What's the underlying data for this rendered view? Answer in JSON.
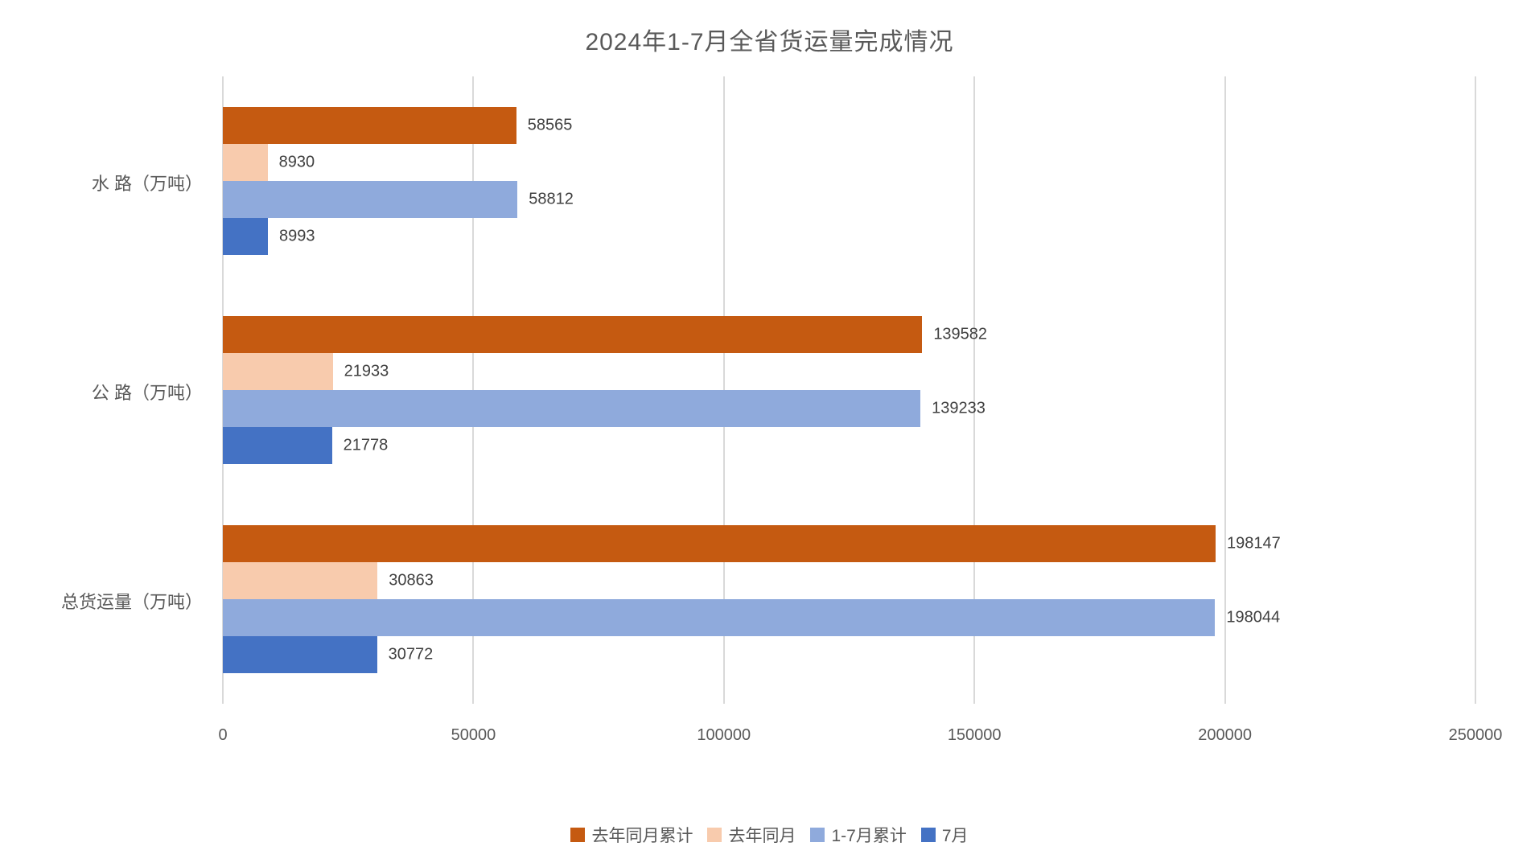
{
  "chart_data": {
    "type": "bar",
    "orientation": "horizontal",
    "title": "2024年1-7月全省货运量完成情况",
    "categories": [
      "水 路（万吨）",
      "公 路（万吨）",
      "总货运量（万吨）"
    ],
    "series": [
      {
        "name": "去年同月累计",
        "color": "#C55A11",
        "values": [
          58565,
          139582,
          198147
        ]
      },
      {
        "name": "去年同月",
        "color": "#F8CBAD",
        "values": [
          8930,
          21933,
          30863
        ]
      },
      {
        "name": "1-7月累计",
        "color": "#8FAADC",
        "values": [
          58812,
          139233,
          198044
        ]
      },
      {
        "name": "7月",
        "color": "#4472C4",
        "values": [
          8993,
          21778,
          30772
        ]
      }
    ],
    "xlim": [
      0,
      250000
    ],
    "x_ticks": [
      "0",
      "50000",
      "100000",
      "150000",
      "200000",
      "250000"
    ],
    "grid": true,
    "legend_position": "bottom",
    "data_labels": true
  },
  "colors": {
    "gridline": "#D9D9D9",
    "title_text": "#595959",
    "axis_text": "#595959",
    "category_text": "#595959",
    "data_label_text": "#404040",
    "background": "#FFFFFF"
  }
}
